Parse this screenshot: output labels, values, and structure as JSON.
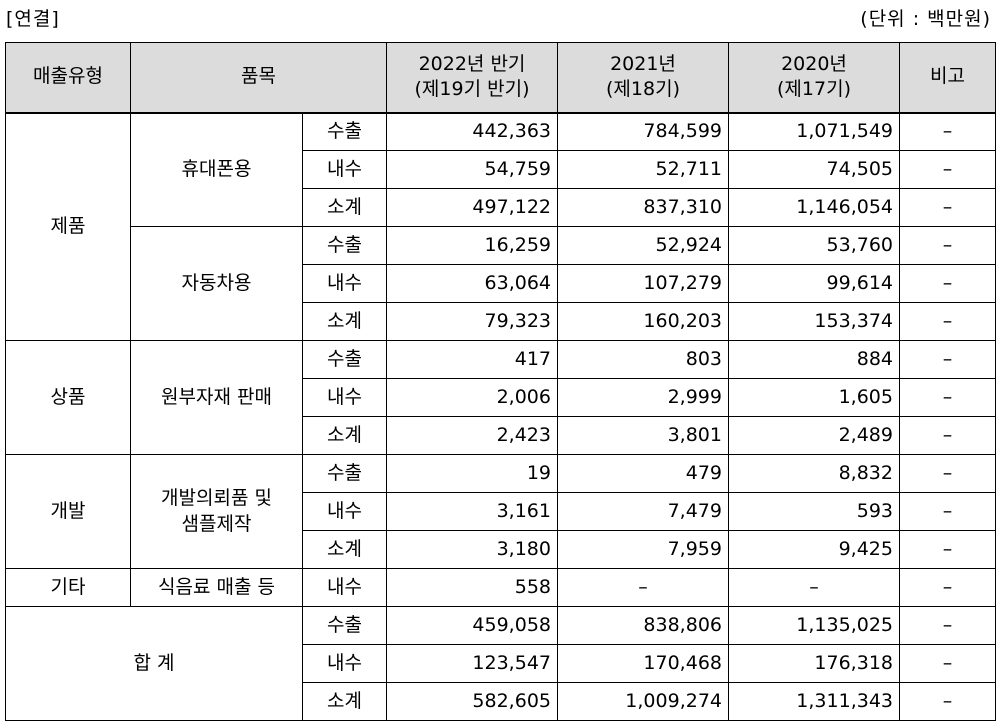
{
  "top_left": "[연결]",
  "top_right": "(단위 : 백만원)",
  "headers": {
    "type": "매출유형",
    "item": "품목",
    "y2022_line1": "2022년 반기",
    "y2022_line2": "(제19기 반기)",
    "y2021_line1": "2021년",
    "y2021_line2": "(제18기)",
    "y2020_line1": "2020년",
    "y2020_line2": "(제17기)",
    "note": "비고"
  },
  "groups": {
    "product": "제품",
    "goods": "상품",
    "dev": "개발",
    "other": "기타",
    "total": "합 계"
  },
  "items": {
    "mobile": "휴대폰용",
    "auto": "자동차용",
    "raw": "원부자재 판매",
    "dev_line1": "개발의뢰품 및",
    "dev_line2": "샘플제작",
    "food": "식음료 매출 등"
  },
  "rows": [
    {
      "sub": "수출",
      "v2022": "442,363",
      "v2021": "784,599",
      "v2020": "1,071,549",
      "note": "–"
    },
    {
      "sub": "내수",
      "v2022": "54,759",
      "v2021": "52,711",
      "v2020": "74,505",
      "note": "–"
    },
    {
      "sub": "소계",
      "v2022": "497,122",
      "v2021": "837,310",
      "v2020": "1,146,054",
      "note": "–"
    },
    {
      "sub": "수출",
      "v2022": "16,259",
      "v2021": "52,924",
      "v2020": "53,760",
      "note": "–"
    },
    {
      "sub": "내수",
      "v2022": "63,064",
      "v2021": "107,279",
      "v2020": "99,614",
      "note": "–"
    },
    {
      "sub": "소계",
      "v2022": "79,323",
      "v2021": "160,203",
      "v2020": "153,374",
      "note": "–"
    },
    {
      "sub": "수출",
      "v2022": "417",
      "v2021": "803",
      "v2020": "884",
      "note": "–"
    },
    {
      "sub": "내수",
      "v2022": "2,006",
      "v2021": "2,999",
      "v2020": "1,605",
      "note": "–"
    },
    {
      "sub": "소계",
      "v2022": "2,423",
      "v2021": "3,801",
      "v2020": "2,489",
      "note": "–"
    },
    {
      "sub": "수출",
      "v2022": "19",
      "v2021": "479",
      "v2020": "8,832",
      "note": "–"
    },
    {
      "sub": "내수",
      "v2022": "3,161",
      "v2021": "7,479",
      "v2020": "593",
      "note": "–"
    },
    {
      "sub": "소계",
      "v2022": "3,180",
      "v2021": "7,959",
      "v2020": "9,425",
      "note": "–"
    },
    {
      "sub": "내수",
      "v2022": "558",
      "v2021": "–",
      "v2020": "–",
      "note": "–"
    },
    {
      "sub": "수출",
      "v2022": "459,058",
      "v2021": "838,806",
      "v2020": "1,135,025",
      "note": "–"
    },
    {
      "sub": "내수",
      "v2022": "123,547",
      "v2021": "170,468",
      "v2020": "176,318",
      "note": "–"
    },
    {
      "sub": "소계",
      "v2022": "582,605",
      "v2021": "1,009,274",
      "v2020": "1,311,343",
      "note": "–"
    }
  ]
}
